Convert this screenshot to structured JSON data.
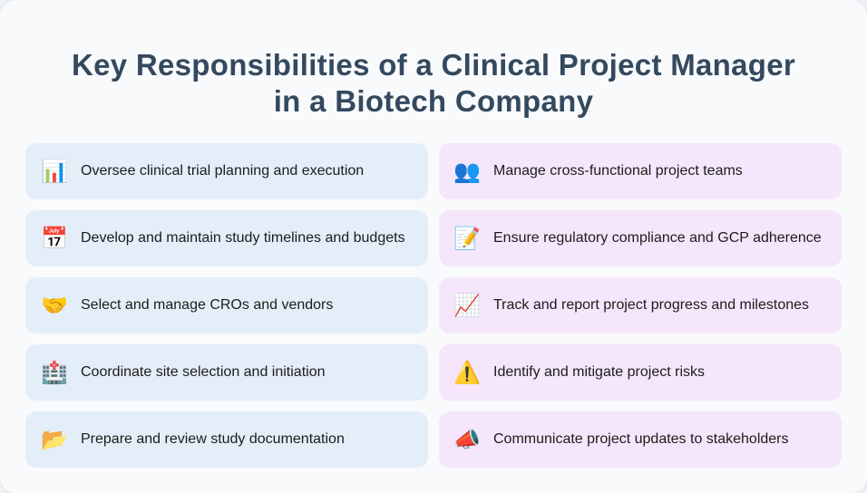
{
  "title": {
    "line1": "Key Responsibilities of a Clinical Project Manager",
    "line2": "in a Biotech Company"
  },
  "colors": {
    "title": "#34495e",
    "left_card_bg": "#e4eef9",
    "right_card_bg": "#f5e6fb",
    "page_bg": "#f8fafc"
  },
  "left_column": [
    {
      "icon": "📊",
      "icon_name": "bar-chart-icon",
      "label": "Oversee clinical trial planning and execution"
    },
    {
      "icon": "📅",
      "icon_name": "calendar-icon",
      "label": "Develop and maintain study timelines and budgets"
    },
    {
      "icon": "🤝",
      "icon_name": "handshake-icon",
      "label": "Select and manage CROs and vendors"
    },
    {
      "icon": "🏥",
      "icon_name": "hospital-icon",
      "label": "Coordinate site selection and initiation"
    },
    {
      "icon": "📂",
      "icon_name": "open-folder-icon",
      "label": "Prepare and review study documentation"
    }
  ],
  "right_column": [
    {
      "icon": "👥",
      "icon_name": "people-icon",
      "label": "Manage cross-functional project teams"
    },
    {
      "icon": "📝",
      "icon_name": "memo-icon",
      "label": "Ensure regulatory compliance and GCP adherence"
    },
    {
      "icon": "📈",
      "icon_name": "trending-up-chart-icon",
      "label": "Track and report project progress and milestones"
    },
    {
      "icon": "⚠️",
      "icon_name": "warning-icon",
      "label": "Identify and mitigate project risks"
    },
    {
      "icon": "📣",
      "icon_name": "megaphone-icon",
      "label": "Communicate project updates to stakeholders"
    }
  ]
}
